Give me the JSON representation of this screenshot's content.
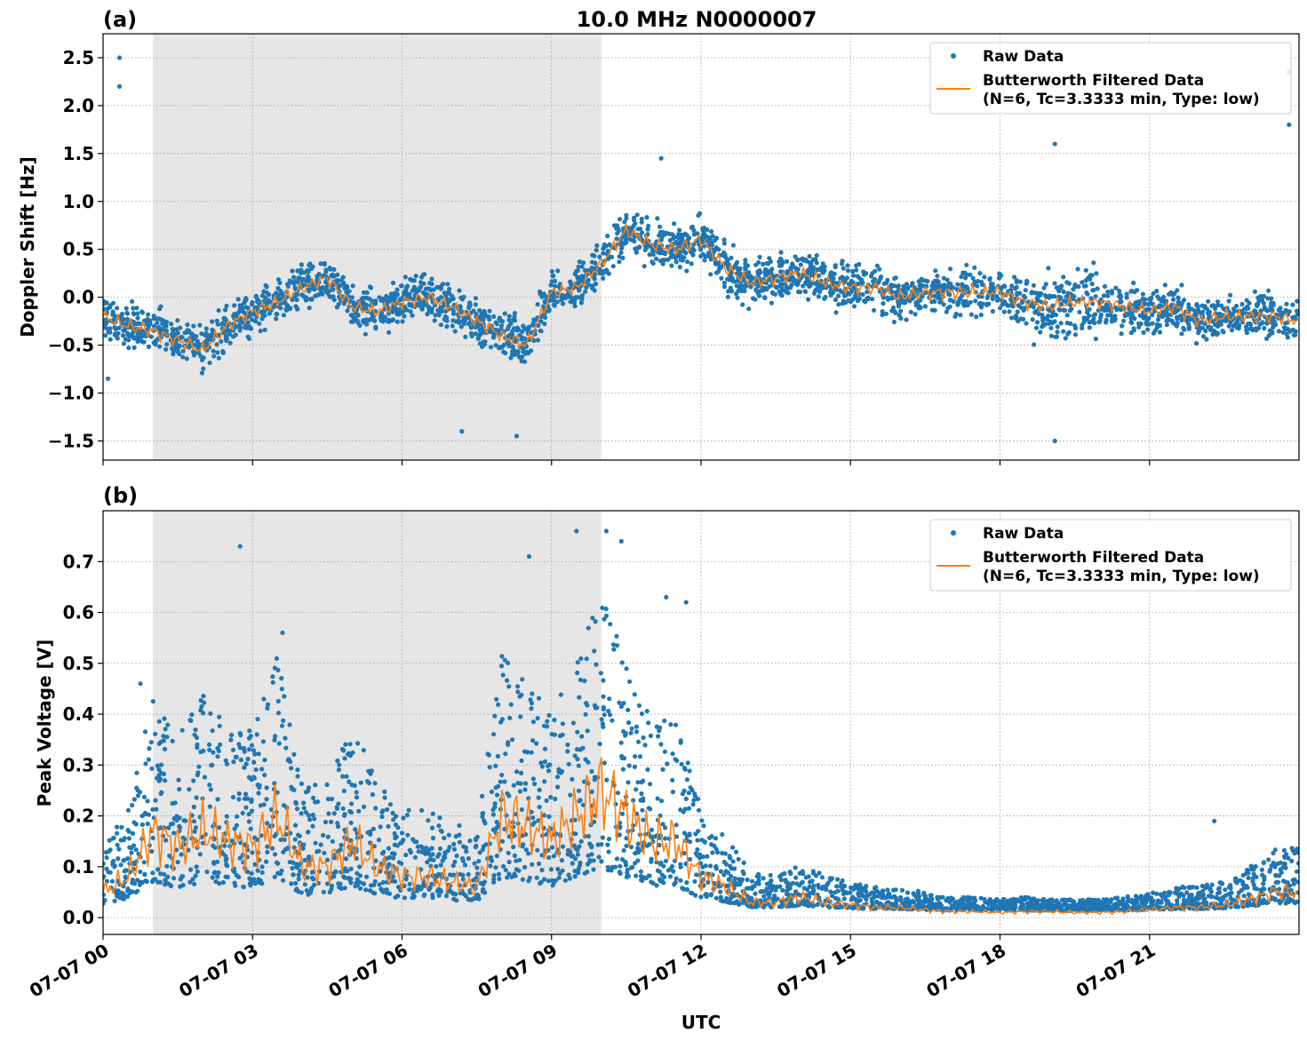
{
  "chart_data": [
    {
      "type": "scatter",
      "panel_label": "(a)",
      "title": "10.0 MHz N0000007",
      "xlabel": "",
      "ylabel": "Doppler Shift [Hz]",
      "xlim_hours_utc": [
        0,
        24
      ],
      "ylim": [
        -1.7,
        2.75
      ],
      "yticks": [
        "−1.5",
        "−1.0",
        "−0.5",
        "0.0",
        "0.5",
        "1.0",
        "1.5",
        "2.0",
        "2.5"
      ],
      "ytick_values": [
        -1.5,
        -1.0,
        -0.5,
        0.0,
        0.5,
        1.0,
        1.5,
        2.0,
        2.5
      ],
      "shaded_interval_hours": [
        1,
        10
      ],
      "grid": true,
      "legend_placement": "top-right",
      "legend": [
        "Raw Data",
        "Butterworth Filtered Data",
        "(N=6, Tc=3.3333 min, Type: low)"
      ],
      "x": [
        0,
        0.5,
        1,
        1.5,
        2,
        2.5,
        3,
        3.5,
        4,
        4.5,
        5,
        5.5,
        6,
        6.5,
        7,
        7.5,
        8,
        8.5,
        9,
        9.5,
        10,
        10.5,
        11,
        11.5,
        12,
        12.5,
        13,
        13.5,
        14,
        14.5,
        15,
        15.5,
        16,
        16.5,
        17,
        17.5,
        18,
        18.5,
        19,
        19.5,
        20,
        20.5,
        21,
        21.5,
        22,
        22.5,
        23,
        23.5,
        24
      ],
      "series": [
        {
          "name": "Butterworth Filtered Data",
          "color": "#ff7f0e",
          "values": [
            -0.2,
            -0.3,
            -0.35,
            -0.45,
            -0.55,
            -0.3,
            -0.15,
            -0.05,
            0.1,
            0.2,
            -0.1,
            -0.15,
            -0.05,
            0.0,
            -0.1,
            -0.25,
            -0.4,
            -0.5,
            0.05,
            0.1,
            0.35,
            0.7,
            0.55,
            0.5,
            0.6,
            0.3,
            0.15,
            0.2,
            0.25,
            0.15,
            0.1,
            0.1,
            0.0,
            0.05,
            0.05,
            0.05,
            0.05,
            -0.05,
            -0.1,
            -0.05,
            -0.05,
            -0.1,
            -0.15,
            -0.1,
            -0.25,
            -0.2,
            -0.2,
            -0.2,
            -0.25
          ]
        },
        {
          "name": "Raw Data",
          "color": "#1f77b4",
          "spread": 0.33,
          "outliers": [
            [
              0.33,
              2.5
            ],
            [
              0.33,
              2.2
            ],
            [
              23.8,
              2.35
            ],
            [
              23.8,
              1.8
            ],
            [
              19.1,
              1.6
            ],
            [
              19.1,
              -1.5
            ],
            [
              8.3,
              -1.45
            ],
            [
              11.2,
              1.45
            ],
            [
              7.2,
              -1.4
            ],
            [
              0.1,
              -0.85
            ]
          ]
        }
      ]
    },
    {
      "type": "scatter",
      "panel_label": "(b)",
      "xlabel": "UTC",
      "ylabel": "Peak Voltage [V]",
      "xlim_hours_utc": [
        0,
        24
      ],
      "ylim": [
        -0.033,
        0.8
      ],
      "yticks": [
        "0.0",
        "0.1",
        "0.2",
        "0.3",
        "0.4",
        "0.5",
        "0.6",
        "0.7"
      ],
      "ytick_values": [
        0,
        0.1,
        0.2,
        0.3,
        0.4,
        0.5,
        0.6,
        0.7
      ],
      "xticks": [
        "07-07 00",
        "07-07 03",
        "07-07 06",
        "07-07 09",
        "07-07 12",
        "07-07 15",
        "07-07 18",
        "07-07 21"
      ],
      "xtick_hours": [
        0,
        3,
        6,
        9,
        12,
        15,
        18,
        21
      ],
      "shaded_interval_hours": [
        1,
        10
      ],
      "grid": true,
      "legend_placement": "top-right",
      "legend": [
        "Raw Data",
        "Butterworth Filtered Data",
        "(N=6, Tc=3.3333 min, Type: low)"
      ],
      "x": [
        0,
        0.5,
        1,
        1.5,
        2,
        2.5,
        3,
        3.5,
        4,
        4.5,
        5,
        5.5,
        6,
        6.5,
        7,
        7.5,
        8,
        8.5,
        9,
        9.5,
        10,
        10.5,
        11,
        11.5,
        12,
        12.5,
        13,
        13.5,
        14,
        14.5,
        15,
        15.5,
        16,
        16.5,
        17,
        17.5,
        18,
        18.5,
        19,
        19.5,
        20,
        20.5,
        21,
        21.5,
        22,
        22.5,
        23,
        23.5,
        24
      ],
      "series": [
        {
          "name": "Butterworth Filtered Data",
          "color": "#ff7f0e",
          "values": [
            0.05,
            0.08,
            0.17,
            0.14,
            0.17,
            0.15,
            0.14,
            0.2,
            0.1,
            0.1,
            0.15,
            0.1,
            0.08,
            0.08,
            0.07,
            0.06,
            0.2,
            0.18,
            0.15,
            0.2,
            0.25,
            0.2,
            0.15,
            0.15,
            0.08,
            0.06,
            0.03,
            0.03,
            0.04,
            0.03,
            0.025,
            0.02,
            0.02,
            0.015,
            0.012,
            0.012,
            0.01,
            0.012,
            0.012,
            0.01,
            0.01,
            0.012,
            0.015,
            0.02,
            0.02,
            0.025,
            0.035,
            0.05,
            0.05
          ]
        },
        {
          "name": "Raw Data",
          "color": "#1f77b4",
          "outliers": [
            [
              2.75,
              0.73
            ],
            [
              3.6,
              0.56
            ],
            [
              8.55,
              0.71
            ],
            [
              9.5,
              0.76
            ],
            [
              10.1,
              0.76
            ],
            [
              10.4,
              0.74
            ],
            [
              11.3,
              0.63
            ],
            [
              11.7,
              0.62
            ],
            [
              0.75,
              0.46
            ],
            [
              22.3,
              0.19
            ]
          ]
        }
      ]
    }
  ]
}
